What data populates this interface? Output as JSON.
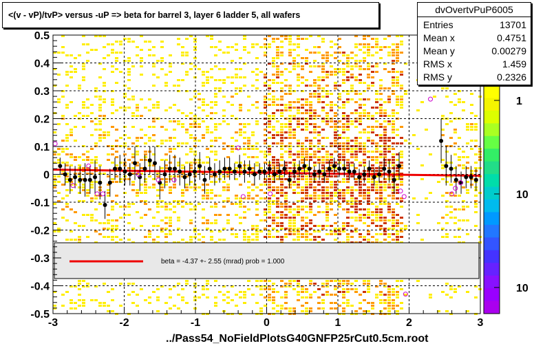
{
  "title": "<(v - vP)/tvP> versus  -uP => beta for barrel 3, layer 6 ladder 5, all wafers",
  "stats": {
    "name": "dvOvertvPuP6005",
    "rows": [
      {
        "label": "Entries",
        "value": "13701"
      },
      {
        "label": "Mean x",
        "value": "0.4751"
      },
      {
        "label": "Mean y",
        "value": "0.00279"
      },
      {
        "label": "RMS x",
        "value": "1.459"
      },
      {
        "label": "RMS y",
        "value": "0.2326"
      }
    ]
  },
  "footer": "../Pass54_NoFieldPlotsG40GNFP25rCut0.5cm.root",
  "colors": {
    "fit_line": "#ee0000",
    "profile_points": "#000000",
    "open_markers": "#cc00cc",
    "heat_low": "#ffee00",
    "heat_mid": "#ff9900",
    "heat_high": "#cc3300",
    "legend_band": "#e8e8e8"
  },
  "chart_data": {
    "type": "heatmap",
    "xlim": [
      -3,
      3
    ],
    "ylim": [
      -0.5,
      0.5
    ],
    "x_ticks": [
      "-3",
      "-2",
      "-1",
      "0",
      "1",
      "2",
      "3"
    ],
    "y_ticks": [
      "-0.5",
      "-0.4",
      "-0.3",
      "-0.2",
      "-0.1",
      "0",
      "0.1",
      "0.2",
      "0.3",
      "0.4",
      "0.5"
    ],
    "grid": true,
    "color_scale_labels": [
      "1",
      "10",
      "10"
    ],
    "legend_text": "beta =   -4.37 +-  2.55 (mrad) prob = 1.000",
    "fit_line": {
      "x": [
        -3,
        2.0,
        3.0
      ],
      "y": [
        0.017,
        -0.002,
        -0.005
      ]
    },
    "profile": {
      "x": [
        -2.9,
        -2.83,
        -2.76,
        -2.69,
        -2.62,
        -2.55,
        -2.48,
        -2.41,
        -2.34,
        -2.27,
        -2.2,
        -2.13,
        -2.06,
        -1.99,
        -1.92,
        -1.85,
        -1.78,
        -1.71,
        -1.64,
        -1.57,
        -1.5,
        -1.43,
        -1.36,
        -1.29,
        -1.22,
        -1.15,
        -1.08,
        -1.01,
        -0.94,
        -0.87,
        -0.8,
        -0.73,
        -0.66,
        -0.59,
        -0.52,
        -0.45,
        -0.38,
        -0.31,
        -0.24,
        -0.17,
        -0.1,
        -0.03,
        0.04,
        0.11,
        0.18,
        0.25,
        0.32,
        0.39,
        0.46,
        0.53,
        0.6,
        0.67,
        0.74,
        0.81,
        0.88,
        0.95,
        1.02,
        1.09,
        1.16,
        1.23,
        1.3,
        1.37,
        1.44,
        1.51,
        1.58,
        1.65,
        1.72,
        1.79,
        1.86,
        2.45,
        2.52,
        2.59,
        2.66,
        2.73,
        2.8,
        2.87,
        2.94
      ],
      "y": [
        0.03,
        0.0,
        -0.02,
        -0.01,
        -0.02,
        -0.02,
        -0.02,
        -0.01,
        -0.03,
        -0.11,
        -0.03,
        0.02,
        0.02,
        0.01,
        0.0,
        0.04,
        -0.01,
        0.02,
        0.05,
        0.04,
        -0.03,
        0.0,
        0.02,
        0.02,
        0.01,
        -0.01,
        0.0,
        0.01,
        0.03,
        -0.02,
        0.02,
        0.0,
        0.01,
        0.02,
        0.02,
        0.01,
        0.03,
        0.01,
        0.02,
        0.0,
        0.01,
        0.01,
        0.02,
        0.0,
        0.01,
        0.02,
        -0.02,
        0.01,
        0.02,
        0.03,
        0.02,
        0.0,
        0.01,
        0.0,
        0.02,
        0.03,
        0.02,
        0.02,
        0.01,
        0.01,
        -0.01,
        0.0,
        0.02,
        -0.01,
        0.0,
        0.02,
        0.01,
        -0.02,
        0.03,
        0.12,
        0.03,
        0.02,
        -0.02,
        -0.03,
        -0.01,
        -0.01,
        -0.02
      ],
      "err": [
        0.03,
        0.04,
        0.05,
        0.04,
        0.05,
        0.06,
        0.05,
        0.06,
        0.06,
        0.05,
        0.05,
        0.04,
        0.05,
        0.05,
        0.04,
        0.06,
        0.05,
        0.05,
        0.05,
        0.06,
        0.06,
        0.05,
        0.05,
        0.05,
        0.05,
        0.04,
        0.04,
        0.05,
        0.05,
        0.05,
        0.04,
        0.04,
        0.04,
        0.04,
        0.04,
        0.03,
        0.04,
        0.04,
        0.03,
        0.04,
        0.03,
        0.03,
        0.03,
        0.03,
        0.03,
        0.03,
        0.03,
        0.03,
        0.03,
        0.03,
        0.03,
        0.03,
        0.03,
        0.03,
        0.03,
        0.03,
        0.03,
        0.03,
        0.03,
        0.03,
        0.03,
        0.03,
        0.03,
        0.03,
        0.03,
        0.04,
        0.04,
        0.05,
        0.05,
        0.08,
        0.07,
        0.05,
        0.05,
        0.04,
        0.04,
        0.04,
        0.04
      ]
    },
    "open_markers": {
      "x": [
        -2.97,
        -2.72,
        -2.5,
        -2.38,
        -2.3,
        -1.8,
        -1.52,
        -1.3,
        -0.4,
        -0.33,
        0.05,
        1.88,
        1.93,
        1.95,
        2.3,
        2.6,
        2.65,
        2.72
      ],
      "y": [
        0.11,
        -0.04,
        0.03,
        -0.07,
        -0.07,
        0.0,
        -0.02,
        -0.02,
        0.095,
        -0.08,
        -0.07,
        -0.06,
        -0.08,
        -0.43,
        0.27,
        -0.07,
        -0.05,
        -0.03
      ]
    },
    "heat_bands": [
      {
        "x0": -3.0,
        "x1": -0.05,
        "density": 0.35
      },
      {
        "x0": -0.05,
        "x1": 1.9,
        "density": 0.75
      },
      {
        "x0": 1.9,
        "x1": 2.45,
        "density": 0.05
      },
      {
        "x0": 2.45,
        "x1": 3.0,
        "density": 0.3
      }
    ]
  }
}
